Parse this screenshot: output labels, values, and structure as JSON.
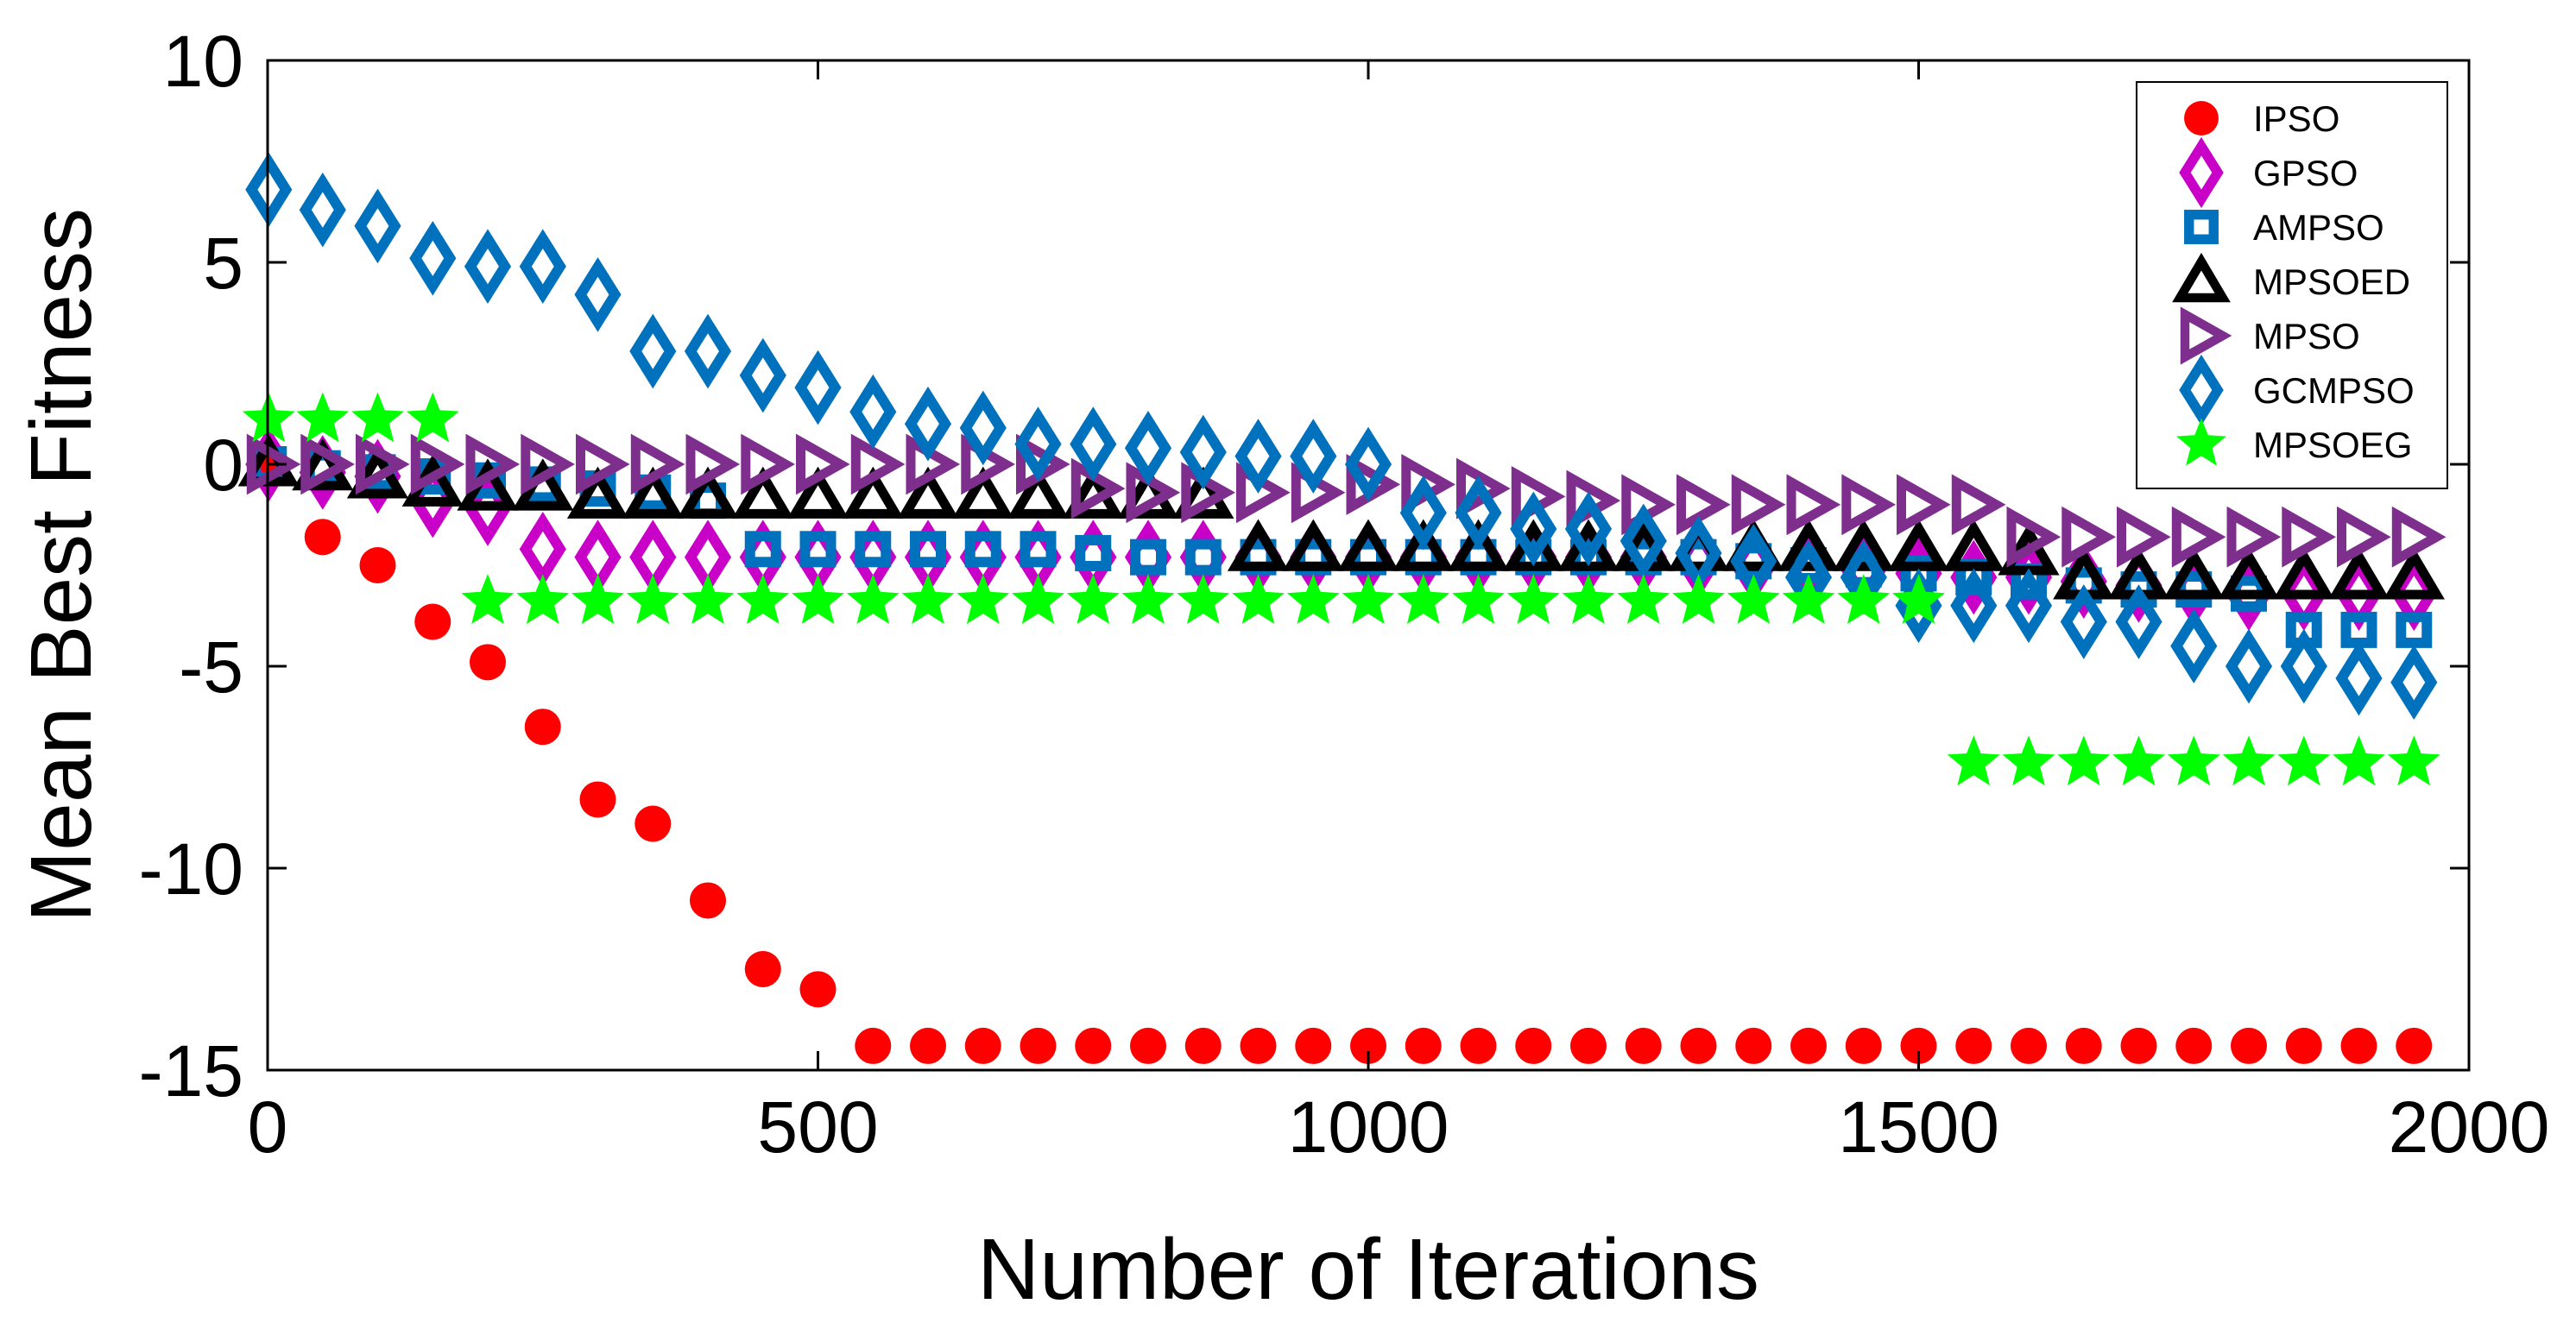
{
  "chart_data": {
    "type": "scatter",
    "title": "",
    "xlabel": "Number of Iterations",
    "ylabel": "Mean Best Fitness",
    "xlim": [
      0,
      2000
    ],
    "ylim": [
      -15,
      10
    ],
    "xticks": [
      0,
      500,
      1000,
      1500,
      2000
    ],
    "xtick_labels": [
      "0",
      "500",
      "1000",
      "1500",
      "2000"
    ],
    "yticks": [
      10,
      5,
      0,
      -5,
      -10,
      -15
    ],
    "ytick_labels": [
      "10",
      "5",
      "0",
      "-5",
      "-10",
      "-15"
    ],
    "grid": false,
    "legend_position": "top-right",
    "x": [
      1,
      50,
      100,
      150,
      200,
      250,
      300,
      350,
      400,
      450,
      500,
      550,
      600,
      650,
      700,
      750,
      800,
      850,
      900,
      950,
      1000,
      1050,
      1100,
      1150,
      1200,
      1250,
      1300,
      1350,
      1400,
      1450,
      1500,
      1550,
      1600,
      1650,
      1700,
      1750,
      1800,
      1850,
      1900,
      1950
    ],
    "series": [
      {
        "name": "IPSO",
        "marker": "circle",
        "color": "#ff0000",
        "values": [
          0.0,
          -1.8,
          -2.5,
          -3.9,
          -4.9,
          -6.5,
          -8.3,
          -8.9,
          -10.8,
          -12.5,
          -13.0,
          -14.4,
          -14.4,
          -14.4,
          -14.4,
          -14.4,
          -14.4,
          -14.4,
          -14.4,
          -14.4,
          -14.4,
          -14.4,
          -14.4,
          -14.4,
          -14.4,
          -14.4,
          -14.4,
          -14.4,
          -14.4,
          -14.4,
          -14.4,
          -14.4,
          -14.4,
          -14.4,
          -14.4,
          -14.4,
          -14.4,
          -14.4,
          -14.4,
          -14.4
        ]
      },
      {
        "name": "GPSO",
        "marker": "diamond",
        "color": "#c800c8",
        "values": [
          0.0,
          -0.2,
          -0.3,
          -0.9,
          -1.1,
          -2.1,
          -2.3,
          -2.3,
          -2.3,
          -2.3,
          -2.3,
          -2.3,
          -2.3,
          -2.3,
          -2.3,
          -2.3,
          -2.3,
          -2.3,
          -2.3,
          -2.3,
          -2.3,
          -2.3,
          -2.3,
          -2.3,
          -2.3,
          -2.3,
          -2.4,
          -2.5,
          -2.5,
          -2.6,
          -2.7,
          -2.8,
          -2.8,
          -2.9,
          -3.0,
          -3.1,
          -3.2,
          -3.2,
          -3.2,
          -3.2
        ]
      },
      {
        "name": "AMPSO",
        "marker": "square",
        "color": "#0072bd",
        "values": [
          0.0,
          -0.1,
          -0.2,
          -0.3,
          -0.4,
          -0.5,
          -0.6,
          -0.7,
          -0.9,
          -2.1,
          -2.1,
          -2.1,
          -2.1,
          -2.1,
          -2.1,
          -2.2,
          -2.3,
          -2.3,
          -2.3,
          -2.3,
          -2.3,
          -2.3,
          -2.3,
          -2.3,
          -2.3,
          -2.3,
          -2.3,
          -2.4,
          -2.5,
          -2.6,
          -2.7,
          -2.8,
          -2.9,
          -3.0,
          -3.1,
          -3.1,
          -3.2,
          -4.1,
          -4.1,
          -4.1
        ]
      },
      {
        "name": "MPSOED",
        "marker": "triangle-up",
        "color": "#000000",
        "values": [
          0.0,
          -0.1,
          -0.3,
          -0.5,
          -0.6,
          -0.6,
          -0.8,
          -0.8,
          -0.8,
          -0.8,
          -0.8,
          -0.8,
          -0.8,
          -0.8,
          -0.8,
          -0.8,
          -0.8,
          -0.8,
          -2.1,
          -2.1,
          -2.1,
          -2.1,
          -2.1,
          -2.1,
          -2.1,
          -2.1,
          -2.1,
          -2.1,
          -2.1,
          -2.1,
          -2.1,
          -2.1,
          -2.2,
          -2.8,
          -2.8,
          -2.8,
          -2.8,
          -2.8,
          -2.8,
          -2.8
        ]
      },
      {
        "name": "MPSO",
        "marker": "triangle-right",
        "color": "#7e2f8e",
        "values": [
          0.0,
          0.0,
          0.0,
          0.0,
          0.0,
          0.0,
          0.0,
          0.0,
          0.0,
          0.0,
          0.0,
          0.0,
          0.0,
          0.0,
          0.0,
          -0.6,
          -0.7,
          -0.7,
          -0.7,
          -0.7,
          -0.5,
          -0.5,
          -0.6,
          -0.8,
          -0.9,
          -1.0,
          -1.0,
          -1.0,
          -1.0,
          -1.0,
          -1.0,
          -1.0,
          -1.8,
          -1.8,
          -1.8,
          -1.8,
          -1.8,
          -1.8,
          -1.8,
          -1.8
        ]
      },
      {
        "name": "GCMPSO",
        "marker": "diamond",
        "color": "#0072bd",
        "values": [
          6.8,
          6.3,
          5.9,
          5.1,
          4.9,
          4.9,
          4.2,
          2.8,
          2.8,
          2.2,
          1.9,
          1.3,
          1.0,
          0.9,
          0.5,
          0.5,
          0.4,
          0.3,
          0.2,
          0.2,
          0.0,
          -1.2,
          -1.2,
          -1.6,
          -1.6,
          -1.9,
          -2.2,
          -2.4,
          -2.8,
          -2.8,
          -3.5,
          -3.5,
          -3.5,
          -3.9,
          -3.9,
          -4.5,
          -5.0,
          -5.0,
          -5.3,
          -5.4
        ]
      },
      {
        "name": "MPSOEG",
        "marker": "star",
        "color": "#00ff00",
        "values": [
          1.1,
          1.1,
          1.1,
          1.1,
          -3.4,
          -3.4,
          -3.4,
          -3.4,
          -3.4,
          -3.4,
          -3.4,
          -3.4,
          -3.4,
          -3.4,
          -3.4,
          -3.4,
          -3.4,
          -3.4,
          -3.4,
          -3.4,
          -3.4,
          -3.4,
          -3.4,
          -3.4,
          -3.4,
          -3.4,
          -3.4,
          -3.4,
          -3.4,
          -3.4,
          -3.4,
          -7.4,
          -7.4,
          -7.4,
          -7.4,
          -7.4,
          -7.4,
          -7.4,
          -7.4,
          -7.4
        ]
      }
    ]
  }
}
